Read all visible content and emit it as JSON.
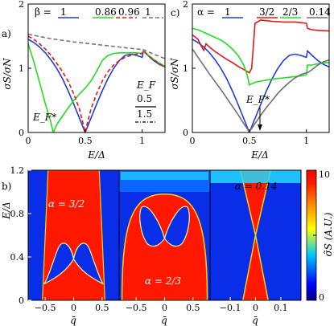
{
  "chart_data": [
    {
      "id": "a",
      "panel_label": "a)",
      "type": "line",
      "xlabel": "E/Δ",
      "ylabel": "σS/σN",
      "xlim": [
        0,
        1.2
      ],
      "ylim": [
        0,
        2
      ],
      "xticks": [
        "0",
        "0.5",
        "1"
      ],
      "yticks": [
        "0",
        "1",
        "2"
      ],
      "legend_symbol": "β =",
      "legend_labels": [
        "1",
        "0.86",
        "0.96",
        "1"
      ],
      "legend2_title": "E_F",
      "legend2_labels": [
        "0.5",
        "1.5"
      ],
      "annotation": "E_F*",
      "series": [
        {
          "name": "1",
          "color": "#1f3fd6",
          "dash": "solid",
          "x": [
            0,
            0.05,
            0.1,
            0.15,
            0.2,
            0.25,
            0.3,
            0.35,
            0.4,
            0.45,
            0.5,
            0.55,
            0.6,
            0.65,
            0.7,
            0.75,
            0.8,
            0.85,
            0.9,
            0.95,
            1.0,
            1.01,
            1.05,
            1.1,
            1.15,
            1.2
          ],
          "y": [
            1.45,
            1.4,
            1.33,
            1.24,
            1.13,
            1.0,
            0.84,
            0.65,
            0.44,
            0.22,
            0.0,
            0.22,
            0.44,
            0.65,
            0.84,
            1.0,
            1.12,
            1.2,
            1.22,
            1.2,
            1.17,
            1.27,
            1.2,
            1.12,
            1.06,
            1.02
          ]
        },
        {
          "name": "0.86",
          "color": "#22dd22",
          "dash": "solid",
          "x": [
            0,
            0.05,
            0.1,
            0.15,
            0.2,
            0.22,
            0.25,
            0.3,
            0.35,
            0.4,
            0.45,
            0.5,
            0.55,
            0.6,
            0.65,
            0.7,
            0.75,
            0.8,
            0.85,
            0.9,
            0.95,
            1.0,
            1.01,
            1.05,
            1.1,
            1.15,
            1.2
          ],
          "y": [
            1.38,
            1.1,
            0.78,
            0.45,
            0.15,
            0.0,
            0.12,
            0.25,
            0.38,
            0.5,
            0.6,
            0.69,
            0.8,
            0.95,
            1.12,
            1.2,
            1.23,
            1.24,
            1.24,
            1.24,
            1.24,
            1.23,
            1.28,
            1.21,
            1.14,
            1.08,
            1.03
          ]
        },
        {
          "name": "0.96",
          "color": "#e01818",
          "dash": "dashed",
          "x": [
            0,
            0.05,
            0.1,
            0.15,
            0.2,
            0.25,
            0.3,
            0.35,
            0.4,
            0.45,
            0.48,
            0.5,
            0.52,
            0.55,
            0.6,
            0.65,
            0.7,
            0.75,
            0.8,
            0.85,
            0.9,
            0.95,
            1.0,
            1.01,
            1.05,
            1.1,
            1.15,
            1.2
          ],
          "y": [
            1.5,
            1.45,
            1.38,
            1.3,
            1.2,
            1.08,
            0.95,
            0.8,
            0.6,
            0.36,
            0.15,
            0.0,
            0.15,
            0.36,
            0.6,
            0.8,
            0.95,
            1.05,
            1.12,
            1.17,
            1.2,
            1.22,
            1.23,
            1.27,
            1.2,
            1.13,
            1.07,
            1.02
          ]
        },
        {
          "name": "1",
          "color": "#777777",
          "dash": "dashed",
          "x": [
            0,
            0.2,
            0.4,
            0.6,
            0.8,
            1.0,
            1.01,
            1.1,
            1.2
          ],
          "y": [
            1.53,
            1.46,
            1.41,
            1.37,
            1.33,
            1.29,
            1.29,
            1.22,
            1.15
          ]
        }
      ]
    },
    {
      "id": "c",
      "panel_label": "c)",
      "type": "line",
      "xlabel": "E/Δ",
      "ylabel": "σS/σN",
      "xlim": [
        0,
        1.2
      ],
      "ylim": [
        0,
        2
      ],
      "xticks": [
        "0",
        "0.5",
        "1"
      ],
      "yticks": [
        "0",
        "1",
        "2"
      ],
      "legend_symbol": "α =",
      "legend_labels": [
        "1",
        "3/2",
        "2/3",
        "0.14"
      ],
      "annotation": "E_F*",
      "series": [
        {
          "name": "1",
          "color": "#1f3fd6",
          "dash": "solid",
          "x": [
            0,
            0.05,
            0.1,
            0.15,
            0.2,
            0.25,
            0.3,
            0.35,
            0.4,
            0.45,
            0.5,
            0.55,
            0.6,
            0.65,
            0.7,
            0.75,
            0.8,
            0.85,
            0.9,
            0.95,
            1.0,
            1.01,
            1.05,
            1.1,
            1.15,
            1.2
          ],
          "y": [
            1.45,
            1.4,
            1.33,
            1.24,
            1.13,
            1.0,
            0.84,
            0.65,
            0.44,
            0.22,
            0.0,
            0.22,
            0.44,
            0.65,
            0.84,
            1.0,
            1.12,
            1.2,
            1.22,
            1.2,
            1.17,
            1.27,
            1.2,
            1.12,
            1.06,
            1.02
          ]
        },
        {
          "name": "3/2",
          "color": "#e01818",
          "dash": "solid",
          "x": [
            0,
            0.05,
            0.08,
            0.1,
            0.12,
            0.15,
            0.2,
            0.25,
            0.3,
            0.35,
            0.4,
            0.45,
            0.5,
            0.52,
            0.55,
            0.6,
            0.7,
            0.8,
            0.9,
            0.95,
            1.0,
            1.01,
            1.05,
            1.1,
            1.2
          ],
          "y": [
            1.52,
            1.45,
            1.34,
            1.28,
            1.38,
            1.33,
            1.26,
            1.2,
            1.14,
            1.09,
            1.03,
            0.98,
            0.93,
            1.0,
            1.7,
            1.75,
            1.73,
            1.72,
            1.72,
            1.71,
            1.7,
            1.62,
            1.6,
            1.59,
            1.58
          ]
        },
        {
          "name": "2/3",
          "color": "#22dd22",
          "dash": "solid",
          "x": [
            0,
            0.05,
            0.1,
            0.15,
            0.2,
            0.25,
            0.3,
            0.35,
            0.4,
            0.45,
            0.48,
            0.5,
            0.52,
            0.55,
            0.6,
            0.7,
            0.8,
            0.9,
            0.95,
            1.0,
            1.01,
            1.05,
            1.1,
            1.15,
            1.2
          ],
          "y": [
            1.62,
            1.6,
            1.56,
            1.52,
            1.48,
            1.44,
            1.38,
            1.3,
            1.2,
            1.05,
            0.9,
            0.74,
            0.76,
            0.78,
            0.8,
            0.83,
            0.85,
            0.87,
            0.88,
            0.9,
            1.05,
            1.05,
            1.07,
            1.08,
            1.09
          ]
        },
        {
          "name": "0.14",
          "color": "#707070",
          "dash": "solid",
          "x": [
            0,
            0.05,
            0.1,
            0.15,
            0.2,
            0.25,
            0.3,
            0.35,
            0.4,
            0.45,
            0.5,
            0.55,
            0.6,
            0.65,
            0.7,
            0.75,
            0.8,
            0.85,
            0.9,
            0.95,
            1.0,
            1.01,
            1.05,
            1.1,
            1.15,
            1.2
          ],
          "y": [
            1.3,
            1.17,
            1.04,
            0.91,
            0.79,
            0.67,
            0.54,
            0.41,
            0.28,
            0.14,
            0.01,
            0.14,
            0.27,
            0.39,
            0.5,
            0.61,
            0.7,
            0.78,
            0.85,
            0.9,
            0.93,
            0.93,
            0.98,
            1.05,
            1.1,
            1.13
          ]
        }
      ]
    },
    {
      "id": "b",
      "panel_label": "b)",
      "type": "heatmap",
      "ylabel": "E/Δ",
      "xlabel": "q̄",
      "ylim": [
        0,
        1.2
      ],
      "yticks": [
        "0",
        "0.4",
        "0.8",
        "1.2"
      ],
      "colorbar_label": "σ̃S (A.U.)",
      "colorbar_range": [
        0,
        10
      ],
      "colorbar_ticks": [
        "0",
        "5",
        "10"
      ],
      "subpanels": [
        {
          "alpha_label": "α = 3/2",
          "alpha": 1.5,
          "xlim": [
            -0.8,
            0.8
          ],
          "xticks": [
            "−0.5",
            "0",
            "0.5"
          ],
          "xtick_values": [
            -0.5,
            0,
            0.5
          ]
        },
        {
          "alpha_label": "α = 2/3",
          "alpha": 0.6667,
          "xlim": [
            -0.8,
            0.8
          ],
          "xticks": [
            "−0.5",
            "0",
            "0.5"
          ],
          "xtick_values": [
            -0.5,
            0,
            0.5
          ]
        },
        {
          "alpha_label": "α = 0.14",
          "alpha": 0.14,
          "xlim": [
            -0.18,
            0.18
          ],
          "xticks": [
            "−0.1",
            "0",
            "0.1"
          ],
          "xtick_values": [
            -0.1,
            0,
            0.1
          ]
        }
      ]
    }
  ]
}
